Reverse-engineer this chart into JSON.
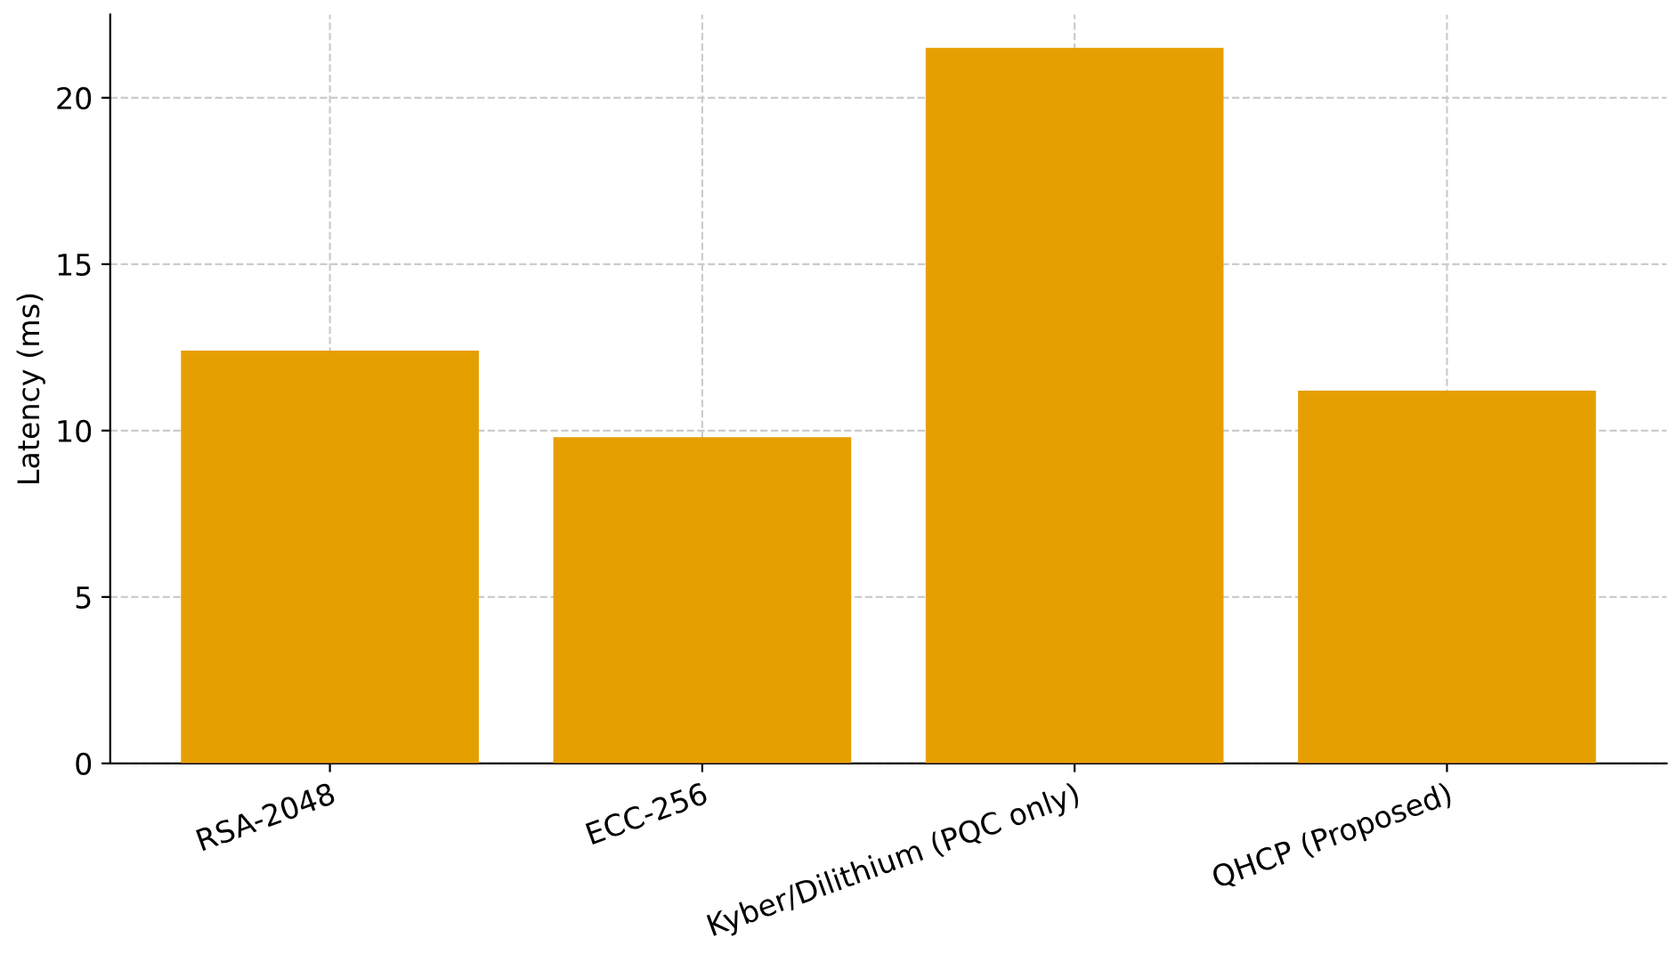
{
  "chart_data": {
    "type": "bar",
    "ylabel": "Latency (ms)",
    "categories": [
      "RSA-2048",
      "ECC-256",
      "Kyber/Dilithium (PQC only)",
      "QHCP (Proposed)"
    ],
    "values": [
      12.4,
      9.8,
      21.5,
      11.2
    ],
    "color": "#e69f00",
    "ylim": [
      0,
      22.5
    ],
    "yticks": [
      0,
      5,
      10,
      15,
      20
    ],
    "grid": true
  }
}
